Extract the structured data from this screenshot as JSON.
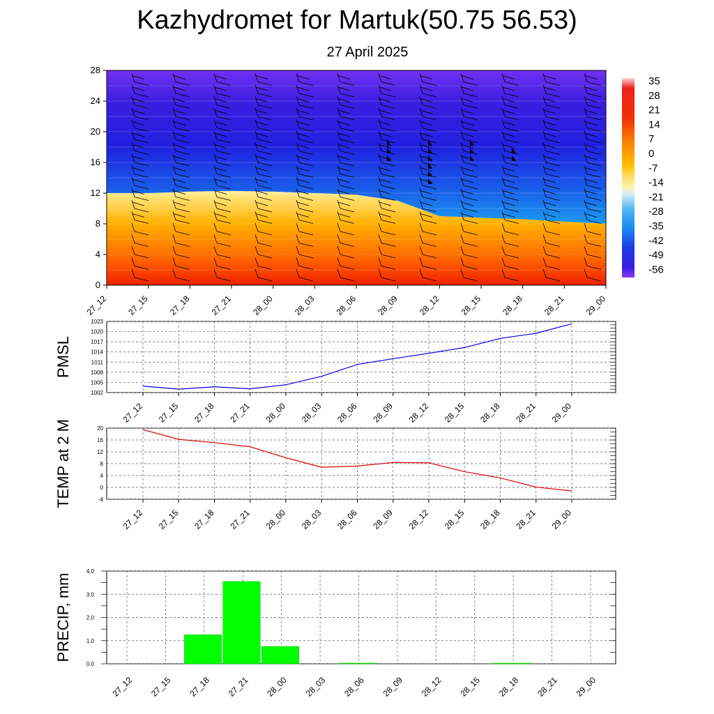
{
  "title": "Kazhydromet for Martuk(50.75 56.53)",
  "subtitle": "27 April 2025",
  "chart_data": [
    {
      "type": "heatmap",
      "name": "vertical-profile",
      "description_kind": "temperature contour with wind barbs",
      "y_ticks": [
        0,
        4,
        8,
        12,
        16,
        20,
        24,
        28
      ],
      "ylim": [
        0,
        28
      ],
      "x_ticks": [
        "27_12",
        "27_15",
        "27_18",
        "27_21",
        "28_00",
        "28_03",
        "28_06",
        "28_09",
        "28_12",
        "28_15",
        "28_18",
        "28_21",
        "29_00"
      ],
      "colorbar_labels": [
        "35",
        "28",
        "21",
        "14",
        "7",
        "0",
        "-7",
        "-14",
        "-21",
        "-28",
        "-35",
        "-42",
        "-49",
        "-56"
      ],
      "freezing_level": [
        12.0,
        12.0,
        12.2,
        12.3,
        12.2,
        12.0,
        11.8,
        11.0,
        9.0,
        8.8,
        8.6,
        8.3,
        8.0
      ],
      "colors": {
        "warm": "#f01f00",
        "cold": "#3a1ee0",
        "top": "#6a2bf0"
      }
    },
    {
      "type": "line",
      "name": "PMSL",
      "ylabel": "PMSL",
      "y_ticks": [
        1002,
        1005,
        1008,
        1011,
        1014,
        1017,
        1020,
        1023
      ],
      "ylim": [
        1002,
        1023
      ],
      "categories": [
        "27_12",
        "27_15",
        "27_18",
        "27_21",
        "28_00",
        "28_03",
        "28_06",
        "28_09",
        "28_12",
        "28_15",
        "28_18",
        "28_21",
        "29_00"
      ],
      "values": [
        1003.9,
        1003.0,
        1003.7,
        1003.1,
        1004.3,
        1006.8,
        1010.3,
        1012.0,
        1013.6,
        1015.3,
        1018.0,
        1019.5,
        1022.3
      ],
      "color": "#0000e0"
    },
    {
      "type": "line",
      "name": "TEMP at 2 M",
      "ylabel": "TEMP at 2 M",
      "y_ticks": [
        -4,
        0,
        4,
        8,
        12,
        16,
        20
      ],
      "ylim": [
        -4,
        20
      ],
      "categories": [
        "27_12",
        "27_15",
        "27_18",
        "27_21",
        "28_00",
        "28_03",
        "28_06",
        "28_09",
        "28_12",
        "28_15",
        "28_18",
        "28_21",
        "29_00"
      ],
      "values": [
        19.5,
        16.2,
        15.1,
        13.7,
        10.0,
        6.8,
        7.2,
        8.4,
        8.3,
        5.3,
        3.2,
        0.1,
        -1.2
      ],
      "color": "#e00000"
    },
    {
      "type": "bar",
      "name": "PRECIP, mm",
      "ylabel": "PRECIP, mm",
      "y_ticks": [
        "0.0",
        "1.0",
        "2.0",
        "3.0",
        "4.0"
      ],
      "ylim": [
        0,
        4
      ],
      "categories": [
        "27_12",
        "27_15",
        "27_18",
        "27_21",
        "28_00",
        "28_03",
        "28_06",
        "28_09",
        "28_12",
        "28_15",
        "28_18",
        "28_21",
        "29_00"
      ],
      "bars": [
        {
          "from": "27_15",
          "to": "27_18",
          "value": 1.25
        },
        {
          "from": "27_18",
          "to": "27_21",
          "value": 3.55
        },
        {
          "from": "27_21",
          "to": "28_00",
          "value": 0.75
        },
        {
          "from": "28_03",
          "to": "28_06",
          "value": 0.02
        },
        {
          "from": "28_15",
          "to": "28_18",
          "value": 0.03
        }
      ],
      "color": "#00ff00"
    }
  ]
}
